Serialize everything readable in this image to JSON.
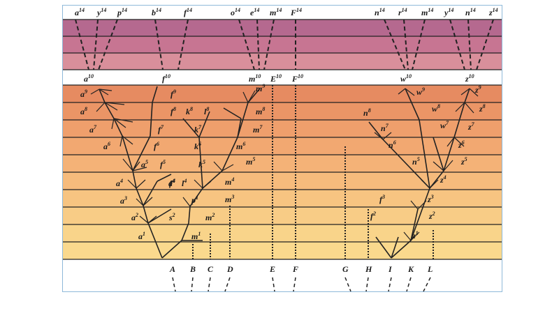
{
  "colors": {
    "band_top": "#b5698f",
    "band_mid": "#d38390",
    "band_bottom_pink": "#e7a7a7",
    "band_orange_top": "#e58a5f",
    "band_orange_bottom": "#f9d68b",
    "line": "#222222",
    "frame": "#8fb9d9"
  },
  "labels": {
    "top_row": [
      {
        "base": "a",
        "sup": "14"
      },
      {
        "base": "y",
        "sup": "14"
      },
      {
        "base": "p",
        "sup": "14"
      },
      {
        "base": "b",
        "sup": "14"
      },
      {
        "base": "f",
        "sup": "14"
      },
      {
        "base": "o",
        "sup": "14"
      },
      {
        "base": "e",
        "sup": "14"
      },
      {
        "base": "m",
        "sup": "14"
      },
      {
        "base": "F",
        "sup": "14"
      },
      {
        "base": "n",
        "sup": "14"
      },
      {
        "base": "r",
        "sup": "14"
      },
      {
        "base": "m",
        "sup": "14"
      },
      {
        "base": "y",
        "sup": "14"
      },
      {
        "base": "n",
        "sup": "14"
      },
      {
        "base": "z",
        "sup": "14"
      }
    ],
    "mid_row": [
      {
        "base": "a",
        "sup": "10"
      },
      {
        "base": "f",
        "sup": "10"
      },
      {
        "base": "m",
        "sup": "10"
      },
      {
        "base": "E",
        "sup": "10"
      },
      {
        "base": "F",
        "sup": "10"
      },
      {
        "base": "w",
        "sup": "10"
      },
      {
        "base": "z",
        "sup": "10"
      }
    ],
    "left_tree": [
      {
        "base": "a",
        "sup": "9"
      },
      {
        "base": "a",
        "sup": "8"
      },
      {
        "base": "a",
        "sup": "7"
      },
      {
        "base": "a",
        "sup": "6"
      },
      {
        "base": "a",
        "sup": "5"
      },
      {
        "base": "a",
        "sup": "4"
      },
      {
        "base": "a",
        "sup": "3"
      },
      {
        "base": "a",
        "sup": "2"
      },
      {
        "base": "a",
        "sup": "1"
      },
      {
        "base": "f",
        "sup": "9"
      },
      {
        "base": "f",
        "sup": "8"
      },
      {
        "base": "f",
        "sup": "7"
      },
      {
        "base": "f",
        "sup": "6"
      },
      {
        "base": "f",
        "sup": "5"
      },
      {
        "base": "f",
        "sup": "4"
      },
      {
        "base": "d",
        "sup": "4"
      },
      {
        "base": "s",
        "sup": "2"
      },
      {
        "base": "k",
        "sup": "8"
      },
      {
        "base": "k",
        "sup": "7"
      },
      {
        "base": "k",
        "sup": "6"
      },
      {
        "base": "k",
        "sup": "5"
      },
      {
        "base": "l",
        "sup": "8"
      },
      {
        "base": "l",
        "sup": "4"
      },
      {
        "base": "p",
        "sup": "1"
      },
      {
        "base": "m",
        "sup": "9"
      },
      {
        "base": "m",
        "sup": "8"
      },
      {
        "base": "m",
        "sup": "7"
      },
      {
        "base": "m",
        "sup": "6"
      },
      {
        "base": "m",
        "sup": "5"
      },
      {
        "base": "m",
        "sup": "4"
      },
      {
        "base": "m",
        "sup": "3"
      },
      {
        "base": "m",
        "sup": "2"
      },
      {
        "base": "m",
        "sup": "1"
      }
    ],
    "right_tree": [
      {
        "base": "w",
        "sup": "9"
      },
      {
        "base": "w",
        "sup": "8"
      },
      {
        "base": "w",
        "sup": "7"
      },
      {
        "base": "n",
        "sup": "8"
      },
      {
        "base": "n",
        "sup": "7"
      },
      {
        "base": "n",
        "sup": "6"
      },
      {
        "base": "n",
        "sup": "5"
      },
      {
        "base": "z",
        "sup": "9"
      },
      {
        "base": "z",
        "sup": "8"
      },
      {
        "base": "z",
        "sup": "7"
      },
      {
        "base": "z",
        "sup": "6"
      },
      {
        "base": "z",
        "sup": "5"
      },
      {
        "base": "z",
        "sup": "4"
      },
      {
        "base": "z",
        "sup": "3"
      },
      {
        "base": "z",
        "sup": "2"
      },
      {
        "base": "z",
        "sup": "1"
      },
      {
        "base": "f",
        "sup": "3"
      },
      {
        "base": "f",
        "sup": "2"
      }
    ],
    "species": [
      "A",
      "B",
      "C",
      "D",
      "E",
      "F",
      "G",
      "H",
      "I",
      "K",
      "L"
    ]
  }
}
